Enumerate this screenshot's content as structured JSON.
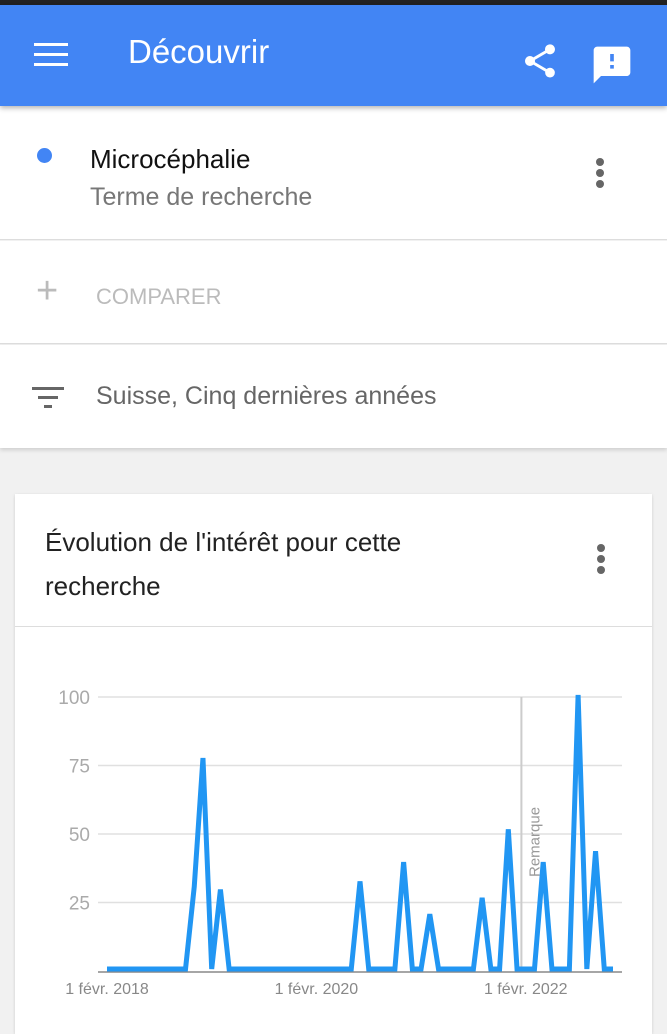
{
  "appbar": {
    "title": "Découvrir",
    "icons": [
      "menu-icon",
      "share-icon",
      "feedback-icon"
    ],
    "color": "#4285f4"
  },
  "term": {
    "name": "Microcéphalie",
    "type": "Terme de recherche",
    "color": "#4285f4"
  },
  "compare": {
    "label": "COMPARER"
  },
  "filter": {
    "label": "Suisse, Cinq dernières années"
  },
  "card": {
    "title": "Évolution de l'intérêt pour cette recherche"
  },
  "chart_data": {
    "type": "line",
    "frequency": "monthly",
    "x_start": "2018-02",
    "values": [
      0,
      0,
      0,
      0,
      0,
      0,
      0,
      0,
      0,
      0,
      30,
      77,
      0,
      29,
      0,
      0,
      0,
      0,
      0,
      0,
      0,
      0,
      0,
      0,
      0,
      0,
      0,
      0,
      0,
      32,
      0,
      0,
      0,
      0,
      39,
      0,
      0,
      20,
      0,
      0,
      0,
      0,
      0,
      26,
      0,
      0,
      51,
      0,
      0,
      0,
      39,
      0,
      0,
      0,
      100,
      0,
      43,
      0,
      0
    ],
    "ylim": [
      0,
      100
    ],
    "yticks": [
      "100",
      "75",
      "50",
      "25"
    ],
    "xticks": [
      {
        "label": "1 févr. 2018",
        "index": 0
      },
      {
        "label": "1 févr. 2020",
        "index": 24
      },
      {
        "label": "1 févr. 2022",
        "index": 48
      }
    ],
    "annotation": {
      "label": "Remarque",
      "index": 47.5
    },
    "grid": true,
    "color": "#2196f3"
  }
}
